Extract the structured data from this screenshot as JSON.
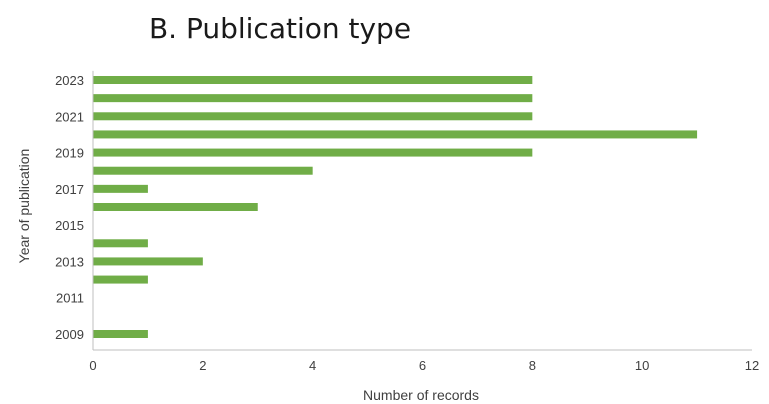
{
  "chart_data": {
    "type": "bar",
    "orientation": "horizontal",
    "title": "B. Publication type",
    "xlabel": "Number of records",
    "ylabel": "Year of publication",
    "categories": [
      "2009",
      "2010",
      "2011",
      "2012",
      "2013",
      "2014",
      "2015",
      "2016",
      "2017",
      "2018",
      "2019",
      "2020",
      "2021",
      "2022",
      "2023"
    ],
    "values": [
      1,
      0,
      0,
      1,
      2,
      1,
      0,
      3,
      1,
      4,
      8,
      11,
      8,
      8,
      8
    ],
    "category_tick_labels": [
      "2009",
      "",
      "2011",
      "",
      "2013",
      "",
      "2015",
      "",
      "2017",
      "",
      "2019",
      "",
      "2021",
      "",
      "2023"
    ],
    "xlim": [
      0,
      12
    ],
    "xticks": [
      0,
      2,
      4,
      6,
      8,
      10,
      12
    ],
    "bar_color": "#70ad47",
    "axis_color": "#bfbfbf",
    "grid": false,
    "legend": "none"
  }
}
